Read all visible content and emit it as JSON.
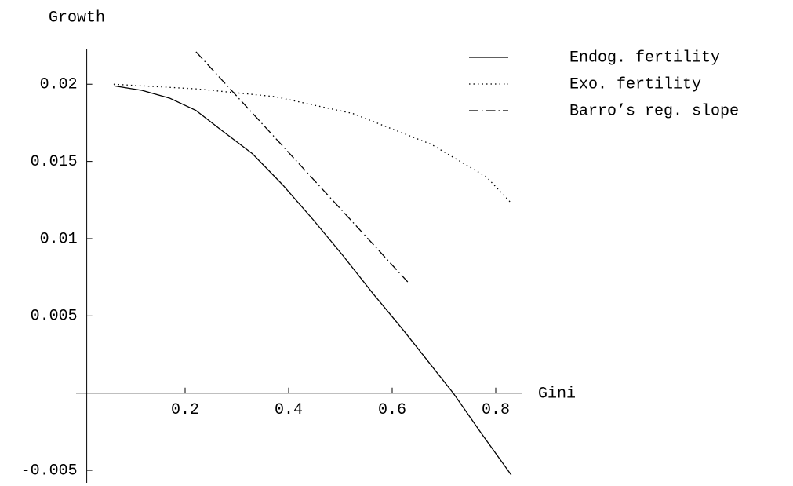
{
  "chart_data": {
    "type": "line",
    "x_label": "Gini",
    "y_label": "Growth",
    "xlim": [
      0.01,
      0.85
    ],
    "ylim": [
      -0.0052,
      0.0223
    ],
    "xticks": [
      0.2,
      0.4,
      0.6,
      0.8
    ],
    "yticks": [
      -0.005,
      0.005,
      0.01,
      0.015,
      0.02
    ],
    "legend": "top-right",
    "series": [
      {
        "name": "Endog. fertility",
        "color": "#000000",
        "style": "solid",
        "x": [
          0.062,
          0.117,
          0.17,
          0.221,
          0.271,
          0.33,
          0.388,
          0.448,
          0.505,
          0.564,
          0.621,
          0.673,
          0.718,
          0.77,
          0.83
        ],
        "values": [
          0.0199,
          0.0196,
          0.0191,
          0.0183,
          0.017,
          0.0155,
          0.0135,
          0.0112,
          0.0089,
          0.0064,
          0.0041,
          0.0019,
          0.0,
          -0.0025,
          -0.0053
        ]
      },
      {
        "name": "Exo. fertility",
        "color": "#000000",
        "style": "dotted",
        "x": [
          0.062,
          0.221,
          0.373,
          0.524,
          0.676,
          0.782,
          0.83
        ],
        "values": [
          0.02,
          0.0197,
          0.0192,
          0.0181,
          0.0161,
          0.014,
          0.0123
        ]
      },
      {
        "name": "Barro’s reg. slope",
        "color": "#000000",
        "style": "dashdot",
        "x": [
          0.221,
          0.63
        ],
        "values": [
          0.0221,
          0.0072
        ]
      }
    ]
  }
}
